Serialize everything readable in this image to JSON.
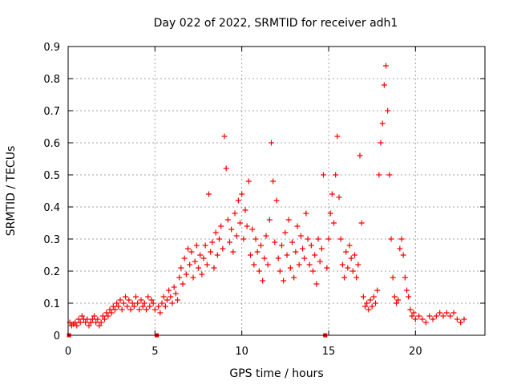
{
  "chart_data": {
    "type": "scatter",
    "title": "Day 022 of 2022, SRMTID for receiver adh1",
    "xlabel": "GPS time / hours",
    "ylabel": "SRMTID / TECUs",
    "xlim": [
      0,
      24
    ],
    "ylim": [
      0,
      0.9
    ],
    "xticks": [
      0,
      5,
      10,
      15,
      20
    ],
    "yticks": [
      0,
      0.1,
      0.2,
      0.3,
      0.4,
      0.5,
      0.6,
      0.7,
      0.8,
      0.9
    ],
    "xtick_labels": [
      "0",
      "5",
      "10",
      "15",
      "20"
    ],
    "ytick_labels": [
      "0",
      "0.1",
      "0.2",
      "0.3",
      "0.4",
      "0.5",
      "0.6",
      "0.7",
      "0.8",
      "0.9"
    ],
    "grid": true,
    "marker": "+",
    "color": "#ff0000",
    "gap_markers_x": [
      0.05,
      5.1,
      14.8
    ],
    "series": [
      {
        "name": "SRMTID",
        "points": [
          [
            0.1,
            0.04
          ],
          [
            0.2,
            0.03
          ],
          [
            0.3,
            0.035
          ],
          [
            0.4,
            0.04
          ],
          [
            0.5,
            0.03
          ],
          [
            0.6,
            0.05
          ],
          [
            0.7,
            0.04
          ],
          [
            0.8,
            0.06
          ],
          [
            0.9,
            0.05
          ],
          [
            1.0,
            0.04
          ],
          [
            1.1,
            0.05
          ],
          [
            1.2,
            0.03
          ],
          [
            1.3,
            0.04
          ],
          [
            1.4,
            0.05
          ],
          [
            1.5,
            0.06
          ],
          [
            1.6,
            0.04
          ],
          [
            1.7,
            0.05
          ],
          [
            1.8,
            0.03
          ],
          [
            1.9,
            0.04
          ],
          [
            2.0,
            0.06
          ],
          [
            2.1,
            0.05
          ],
          [
            2.2,
            0.07
          ],
          [
            2.3,
            0.06
          ],
          [
            2.4,
            0.08
          ],
          [
            2.5,
            0.07
          ],
          [
            2.6,
            0.09
          ],
          [
            2.7,
            0.08
          ],
          [
            2.8,
            0.1
          ],
          [
            2.9,
            0.09
          ],
          [
            3.0,
            0.11
          ],
          [
            3.1,
            0.08
          ],
          [
            3.2,
            0.1
          ],
          [
            3.3,
            0.12
          ],
          [
            3.4,
            0.09
          ],
          [
            3.5,
            0.11
          ],
          [
            3.6,
            0.08
          ],
          [
            3.7,
            0.1
          ],
          [
            3.8,
            0.09
          ],
          [
            3.9,
            0.12
          ],
          [
            4.0,
            0.1
          ],
          [
            4.1,
            0.08
          ],
          [
            4.2,
            0.11
          ],
          [
            4.3,
            0.09
          ],
          [
            4.4,
            0.1
          ],
          [
            4.5,
            0.08
          ],
          [
            4.6,
            0.12
          ],
          [
            4.7,
            0.09
          ],
          [
            4.8,
            0.11
          ],
          [
            4.9,
            0.1
          ],
          [
            5.0,
            0.08
          ],
          [
            5.2,
            0.09
          ],
          [
            5.3,
            0.07
          ],
          [
            5.4,
            0.1
          ],
          [
            5.5,
            0.12
          ],
          [
            5.6,
            0.09
          ],
          [
            5.7,
            0.11
          ],
          [
            5.8,
            0.14
          ],
          [
            5.9,
            0.12
          ],
          [
            6.0,
            0.1
          ],
          [
            6.1,
            0.15
          ],
          [
            6.2,
            0.13
          ],
          [
            6.3,
            0.11
          ],
          [
            6.4,
            0.18
          ],
          [
            6.5,
            0.21
          ],
          [
            6.6,
            0.16
          ],
          [
            6.7,
            0.24
          ],
          [
            6.8,
            0.19
          ],
          [
            6.9,
            0.27
          ],
          [
            7.0,
            0.22
          ],
          [
            7.1,
            0.26
          ],
          [
            7.2,
            0.18
          ],
          [
            7.3,
            0.23
          ],
          [
            7.4,
            0.28
          ],
          [
            7.5,
            0.21
          ],
          [
            7.6,
            0.25
          ],
          [
            7.7,
            0.19
          ],
          [
            7.8,
            0.24
          ],
          [
            7.9,
            0.28
          ],
          [
            8.0,
            0.22
          ],
          [
            8.1,
            0.44
          ],
          [
            8.2,
            0.26
          ],
          [
            8.3,
            0.29
          ],
          [
            8.4,
            0.21
          ],
          [
            8.5,
            0.32
          ],
          [
            8.6,
            0.25
          ],
          [
            8.7,
            0.3
          ],
          [
            8.8,
            0.34
          ],
          [
            8.9,
            0.27
          ],
          [
            9.0,
            0.62
          ],
          [
            9.1,
            0.52
          ],
          [
            9.2,
            0.36
          ],
          [
            9.3,
            0.29
          ],
          [
            9.4,
            0.33
          ],
          [
            9.5,
            0.26
          ],
          [
            9.6,
            0.38
          ],
          [
            9.7,
            0.31
          ],
          [
            9.8,
            0.42
          ],
          [
            9.9,
            0.35
          ],
          [
            10.0,
            0.44
          ],
          [
            10.1,
            0.3
          ],
          [
            10.2,
            0.39
          ],
          [
            10.3,
            0.34
          ],
          [
            10.4,
            0.48
          ],
          [
            10.5,
            0.25
          ],
          [
            10.6,
            0.33
          ],
          [
            10.7,
            0.22
          ],
          [
            10.8,
            0.3
          ],
          [
            10.9,
            0.26
          ],
          [
            11.0,
            0.2
          ],
          [
            11.1,
            0.28
          ],
          [
            11.2,
            0.17
          ],
          [
            11.3,
            0.24
          ],
          [
            11.4,
            0.31
          ],
          [
            11.5,
            0.22
          ],
          [
            11.6,
            0.36
          ],
          [
            11.7,
            0.6
          ],
          [
            11.8,
            0.48
          ],
          [
            11.9,
            0.29
          ],
          [
            12.0,
            0.42
          ],
          [
            12.1,
            0.24
          ],
          [
            12.2,
            0.2
          ],
          [
            12.3,
            0.28
          ],
          [
            12.4,
            0.17
          ],
          [
            12.5,
            0.32
          ],
          [
            12.6,
            0.25
          ],
          [
            12.7,
            0.36
          ],
          [
            12.8,
            0.21
          ],
          [
            12.9,
            0.29
          ],
          [
            13.0,
            0.18
          ],
          [
            13.1,
            0.26
          ],
          [
            13.2,
            0.34
          ],
          [
            13.3,
            0.22
          ],
          [
            13.4,
            0.31
          ],
          [
            13.5,
            0.27
          ],
          [
            13.6,
            0.24
          ],
          [
            13.7,
            0.38
          ],
          [
            13.8,
            0.3
          ],
          [
            13.9,
            0.22
          ],
          [
            14.0,
            0.28
          ],
          [
            14.1,
            0.2
          ],
          [
            14.2,
            0.25
          ],
          [
            14.3,
            0.16
          ],
          [
            14.4,
            0.3
          ],
          [
            14.5,
            0.23
          ],
          [
            14.6,
            0.27
          ],
          [
            14.7,
            0.5
          ],
          [
            14.9,
            0.21
          ],
          [
            15.0,
            0.3
          ],
          [
            15.1,
            0.38
          ],
          [
            15.2,
            0.44
          ],
          [
            15.3,
            0.35
          ],
          [
            15.4,
            0.5
          ],
          [
            15.5,
            0.62
          ],
          [
            15.6,
            0.43
          ],
          [
            15.7,
            0.3
          ],
          [
            15.8,
            0.22
          ],
          [
            15.9,
            0.18
          ],
          [
            16.0,
            0.26
          ],
          [
            16.1,
            0.21
          ],
          [
            16.2,
            0.28
          ],
          [
            16.3,
            0.24
          ],
          [
            16.4,
            0.2
          ],
          [
            16.5,
            0.25
          ],
          [
            16.6,
            0.18
          ],
          [
            16.7,
            0.22
          ],
          [
            16.8,
            0.56
          ],
          [
            16.9,
            0.35
          ],
          [
            17.0,
            0.12
          ],
          [
            17.1,
            0.09
          ],
          [
            17.2,
            0.1
          ],
          [
            17.3,
            0.08
          ],
          [
            17.4,
            0.11
          ],
          [
            17.5,
            0.09
          ],
          [
            17.6,
            0.12
          ],
          [
            17.7,
            0.1
          ],
          [
            17.8,
            0.14
          ],
          [
            17.9,
            0.5
          ],
          [
            18.0,
            0.6
          ],
          [
            18.1,
            0.66
          ],
          [
            18.2,
            0.78
          ],
          [
            18.3,
            0.84
          ],
          [
            18.4,
            0.7
          ],
          [
            18.5,
            0.5
          ],
          [
            18.6,
            0.3
          ],
          [
            18.7,
            0.18
          ],
          [
            18.8,
            0.12
          ],
          [
            18.9,
            0.1
          ],
          [
            19.0,
            0.11
          ],
          [
            19.1,
            0.27
          ],
          [
            19.2,
            0.3
          ],
          [
            19.3,
            0.25
          ],
          [
            19.4,
            0.18
          ],
          [
            19.5,
            0.14
          ],
          [
            19.6,
            0.12
          ],
          [
            19.7,
            0.08
          ],
          [
            19.8,
            0.06
          ],
          [
            19.9,
            0.07
          ],
          [
            20.0,
            0.05
          ],
          [
            20.2,
            0.06
          ],
          [
            20.4,
            0.05
          ],
          [
            20.6,
            0.04
          ],
          [
            20.8,
            0.06
          ],
          [
            21.0,
            0.05
          ],
          [
            21.2,
            0.06
          ],
          [
            21.4,
            0.07
          ],
          [
            21.6,
            0.06
          ],
          [
            21.8,
            0.07
          ],
          [
            22.0,
            0.06
          ],
          [
            22.2,
            0.07
          ],
          [
            22.4,
            0.05
          ],
          [
            22.6,
            0.04
          ],
          [
            22.8,
            0.05
          ]
        ]
      }
    ]
  }
}
